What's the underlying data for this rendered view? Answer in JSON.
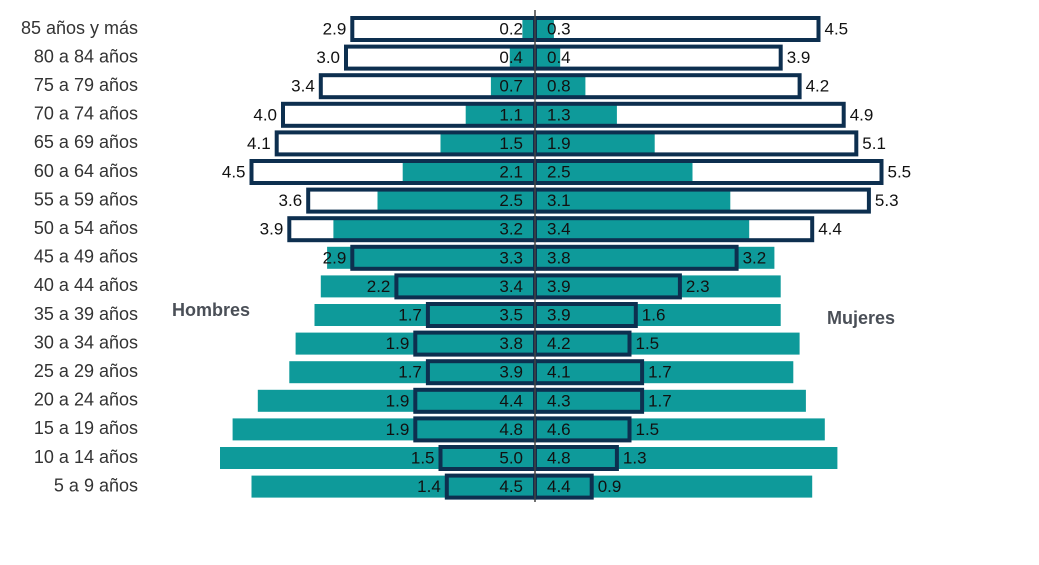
{
  "chart_data": {
    "type": "pyramid",
    "categories": [
      "85 años y más",
      "80 a 84 años",
      "75 a 79 años",
      "70 a 74 años",
      "65 a 69 años",
      "60 a 64 años",
      "55 a 59 años",
      "50 a 54 años",
      "45 a 49 años",
      "40 a 44 años",
      "35 a 39 años",
      "30 a 34 años",
      "25 a 29 años",
      "20 a 24 años",
      "15 a 19 años",
      "10 a 14 años",
      "5 a 9 años"
    ],
    "annotations": {
      "left": "Hombres",
      "right": "Mujeres"
    },
    "series": [
      {
        "side": "left",
        "style": "fill",
        "color": "#0e9a9a",
        "values": [
          0.2,
          0.4,
          0.7,
          1.1,
          1.5,
          2.1,
          2.5,
          3.2,
          3.3,
          3.4,
          3.5,
          3.8,
          3.9,
          4.4,
          4.8,
          5.0,
          4.5
        ],
        "value_labels": [
          "0.2",
          "0.4",
          "0.7",
          "1.1",
          "1.5",
          "2.1",
          "2.5",
          "3.2",
          "3.3",
          "3.4",
          "3.5",
          "3.8",
          "3.9",
          "4.4",
          "4.8",
          "5.0",
          "4.5"
        ]
      },
      {
        "side": "right",
        "style": "fill",
        "color": "#0e9a9a",
        "values": [
          0.3,
          0.4,
          0.8,
          1.3,
          1.9,
          2.5,
          3.1,
          3.4,
          3.8,
          3.9,
          3.9,
          4.2,
          4.1,
          4.3,
          4.6,
          4.8,
          4.4
        ],
        "value_labels": [
          "0.3",
          "0.4",
          "0.8",
          "1.3",
          "1.9",
          "2.5",
          "3.1",
          "3.4",
          "3.8",
          "3.9",
          "3.9",
          "4.2",
          "4.1",
          "4.3",
          "4.6",
          "4.8",
          "4.4"
        ]
      },
      {
        "side": "left",
        "style": "outline",
        "color": "#0d2f4f",
        "values": [
          2.9,
          3.0,
          3.4,
          4.0,
          4.1,
          4.5,
          3.6,
          3.9,
          2.9,
          2.2,
          1.7,
          1.9,
          1.7,
          1.9,
          1.9,
          1.5,
          1.4
        ],
        "value_labels": [
          "2.9",
          "3.0",
          "3.4",
          "4.0",
          "4.1",
          "4.5",
          "3.6",
          "3.9",
          "2.9",
          "2.2",
          "1.7",
          "1.9",
          "1.7",
          "1.9",
          "1.9",
          "1.5",
          "1.4"
        ]
      },
      {
        "side": "right",
        "style": "outline",
        "color": "#0d2f4f",
        "values": [
          4.5,
          3.9,
          4.2,
          4.9,
          5.1,
          5.5,
          5.3,
          4.4,
          3.2,
          2.3,
          1.6,
          1.5,
          1.7,
          1.7,
          1.5,
          1.3,
          0.9
        ],
        "value_labels": [
          "4.5",
          "3.9",
          "4.2",
          "4.9",
          "5.1",
          "5.5",
          "5.3",
          "4.4",
          "3.2",
          "2.3",
          "1.6",
          "1.5",
          "1.7",
          "1.7",
          "1.5",
          "1.3",
          "0.9"
        ]
      }
    ]
  }
}
